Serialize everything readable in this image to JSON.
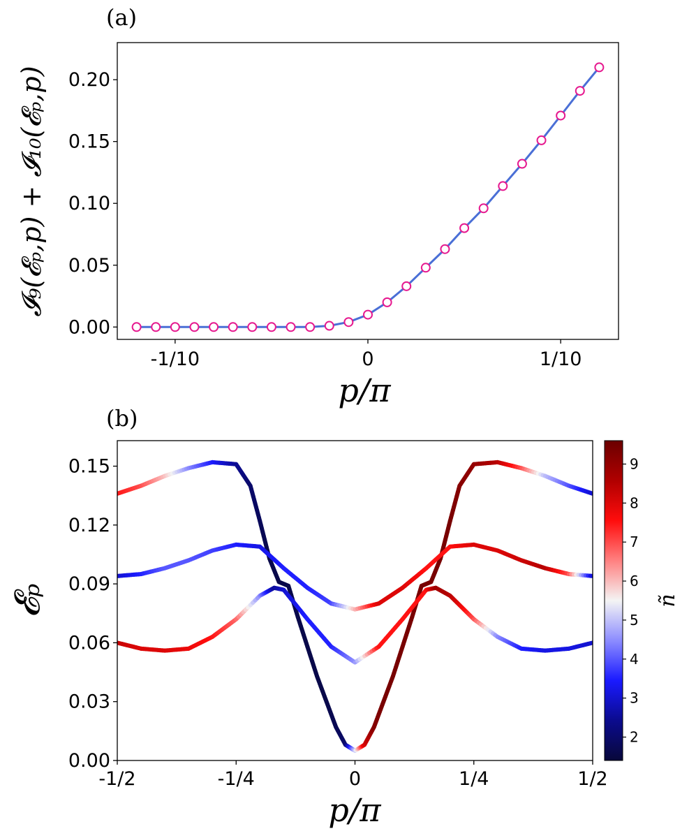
{
  "chart_data": [
    {
      "panel_label": "(a)",
      "type": "line",
      "xlabel": "p/π",
      "ylabel": "𝓘₉(𝓔ₚ,p) + 𝓘₁₀(𝓔ₚ,p)",
      "xlim": [
        -0.13,
        0.13
      ],
      "ylim": [
        -0.01,
        0.23
      ],
      "x_ticks": [
        {
          "value": -0.1,
          "label": "-1/10"
        },
        {
          "value": 0,
          "label": "0"
        },
        {
          "value": 0.1,
          "label": "1/10"
        }
      ],
      "y_ticks": [
        {
          "value": 0.0,
          "label": "0.00"
        },
        {
          "value": 0.05,
          "label": "0.05"
        },
        {
          "value": 0.1,
          "label": "0.10"
        },
        {
          "value": 0.15,
          "label": "0.15"
        },
        {
          "value": 0.2,
          "label": "0.20"
        }
      ],
      "line_color": "#4a6fd6",
      "marker_color": "#e6198f",
      "series": [
        {
          "x": [
            -0.12,
            -0.11,
            -0.1,
            -0.09,
            -0.08,
            -0.07,
            -0.06,
            -0.05,
            -0.04,
            -0.03,
            -0.02,
            -0.01,
            0.0,
            0.01,
            0.02,
            0.03,
            0.04,
            0.05,
            0.06,
            0.07,
            0.08,
            0.09,
            0.1,
            0.11,
            0.12
          ],
          "y": [
            0.0,
            0.0,
            0.0,
            0.0,
            0.0,
            0.0,
            0.0,
            0.0,
            0.0,
            0.0,
            0.001,
            0.004,
            0.01,
            0.02,
            0.033,
            0.048,
            0.063,
            0.08,
            0.096,
            0.114,
            0.132,
            0.151,
            0.171,
            0.191,
            0.21
          ]
        }
      ]
    },
    {
      "panel_label": "(b)",
      "type": "line",
      "xlabel": "p/π",
      "ylabel": "𝓔ₚ",
      "colorbar_label": "ñ",
      "xlim": [
        -0.5,
        0.5
      ],
      "ylim": [
        0.0,
        0.163
      ],
      "x_ticks": [
        {
          "value": -0.5,
          "label": "-1/2"
        },
        {
          "value": -0.25,
          "label": "-1/4"
        },
        {
          "value": 0,
          "label": "0"
        },
        {
          "value": 0.25,
          "label": "1/4"
        },
        {
          "value": 0.5,
          "label": "1/2"
        }
      ],
      "y_ticks": [
        {
          "value": 0.0,
          "label": "0.00"
        },
        {
          "value": 0.03,
          "label": "0.03"
        },
        {
          "value": 0.06,
          "label": "0.06"
        },
        {
          "value": 0.09,
          "label": "0.09"
        },
        {
          "value": 0.12,
          "label": "0.12"
        },
        {
          "value": 0.15,
          "label": "0.15"
        }
      ],
      "colorbar": {
        "min": 1.4,
        "max": 9.6,
        "ticks": [
          2,
          3,
          4,
          5,
          6,
          7,
          8,
          9
        ],
        "colors": [
          "#08083a",
          "#0b0b8e",
          "#1a1aff",
          "#8c8cff",
          "#f4f4f4",
          "#ff8080",
          "#ff0d0d",
          "#b00000",
          "#6b0000"
        ]
      },
      "series": [
        {
          "x": [
            -0.5,
            -0.45,
            -0.4,
            -0.35,
            -0.3,
            -0.25,
            -0.22,
            -0.2,
            -0.18,
            -0.16,
            -0.14,
            -0.12,
            -0.1,
            -0.08,
            -0.06,
            -0.04,
            -0.02,
            0.0,
            0.02,
            0.04,
            0.06,
            0.08,
            0.1,
            0.12,
            0.14,
            0.16,
            0.18,
            0.2,
            0.22,
            0.25,
            0.3,
            0.35,
            0.4,
            0.45,
            0.5
          ],
          "y": [
            0.136,
            0.14,
            0.145,
            0.149,
            0.152,
            0.151,
            0.14,
            0.122,
            0.103,
            0.091,
            0.089,
            0.073,
            0.058,
            0.043,
            0.03,
            0.017,
            0.008,
            0.005,
            0.008,
            0.017,
            0.03,
            0.043,
            0.058,
            0.073,
            0.089,
            0.091,
            0.103,
            0.122,
            0.14,
            0.151,
            0.152,
            0.149,
            0.145,
            0.14,
            0.136
          ],
          "n": [
            7.5,
            7.0,
            6.0,
            4.5,
            3.5,
            2.5,
            2.0,
            1.8,
            1.6,
            1.6,
            1.6,
            1.6,
            1.6,
            1.6,
            1.6,
            1.7,
            2.0,
            5.0,
            8.0,
            9.2,
            9.4,
            9.4,
            9.4,
            9.4,
            9.4,
            9.4,
            9.4,
            9.4,
            9.2,
            9.0,
            8.5,
            7.0,
            5.0,
            4.0,
            3.0
          ]
        },
        {
          "x": [
            -0.5,
            -0.45,
            -0.4,
            -0.35,
            -0.3,
            -0.25,
            -0.2,
            -0.15,
            -0.1,
            -0.05,
            0.0,
            0.05,
            0.1,
            0.15,
            0.2,
            0.25,
            0.3,
            0.35,
            0.4,
            0.45,
            0.5
          ],
          "y": [
            0.094,
            0.095,
            0.098,
            0.102,
            0.107,
            0.11,
            0.109,
            0.098,
            0.088,
            0.08,
            0.077,
            0.08,
            0.088,
            0.098,
            0.109,
            0.11,
            0.107,
            0.102,
            0.098,
            0.095,
            0.094
          ],
          "n": [
            3.0,
            3.5,
            4.0,
            4.0,
            3.8,
            3.5,
            3.2,
            3.5,
            3.5,
            3.8,
            6.0,
            8.0,
            8.0,
            7.5,
            7.5,
            8.0,
            8.0,
            8.2,
            8.5,
            7.0,
            3.0
          ]
        },
        {
          "x": [
            -0.5,
            -0.45,
            -0.4,
            -0.35,
            -0.3,
            -0.25,
            -0.2,
            -0.17,
            -0.15,
            -0.1,
            -0.05,
            0.0,
            0.05,
            0.1,
            0.15,
            0.17,
            0.2,
            0.25,
            0.3,
            0.35,
            0.4,
            0.45,
            0.5
          ],
          "y": [
            0.06,
            0.057,
            0.056,
            0.057,
            0.063,
            0.072,
            0.084,
            0.088,
            0.087,
            0.072,
            0.058,
            0.05,
            0.058,
            0.072,
            0.087,
            0.088,
            0.084,
            0.072,
            0.063,
            0.057,
            0.056,
            0.057,
            0.06
          ],
          "n": [
            8.3,
            8.0,
            8.0,
            7.8,
            7.5,
            6.8,
            4.5,
            2.5,
            3.0,
            3.5,
            3.5,
            4.5,
            7.5,
            7.5,
            7.5,
            8.8,
            8.5,
            7.0,
            4.5,
            3.5,
            3.2,
            3.2,
            3.0
          ]
        }
      ]
    }
  ]
}
